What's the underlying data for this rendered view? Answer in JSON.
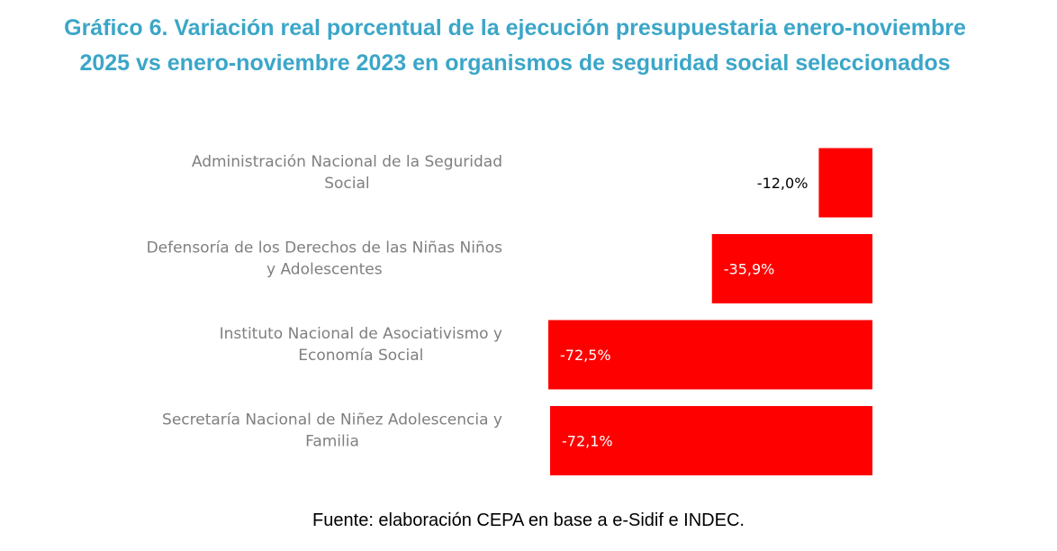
{
  "chart_data": {
    "type": "bar",
    "orientation": "horizontal",
    "title": "Gráfico 6. Variación real porcentual de la ejecución presupuestaria enero-noviembre 2025 vs enero-noviembre 2023 en organismos de seguridad social seleccionados",
    "categories": [
      [
        "Administración Nacional de la Seguridad",
        "Social"
      ],
      [
        "Defensoría de los Derechos de las Niñas Niños",
        "y Adolescentes"
      ],
      [
        "Instituto Nacional de Asociativismo y",
        "Economía Social"
      ],
      [
        "Secretaría Nacional de Niñez Adolescencia y",
        "Familia"
      ]
    ],
    "values": [
      -12.0,
      -35.9,
      -72.5,
      -72.1
    ],
    "data_labels": [
      "-12,0%",
      "-35,9%",
      "-72,5%",
      "-72,1%"
    ],
    "xlim": [
      -72.5,
      0
    ],
    "xlabel": "",
    "ylabel": "",
    "grid": false,
    "legend": "none",
    "bar_color": "#ff0000",
    "source": "Fuente: elaboración CEPA en base a e-Sidif e INDEC."
  },
  "colors": {
    "title": "#3ba6c8",
    "bar": "#ff0000",
    "category_text": "#7f7f7f",
    "label_inside": "#ffffff",
    "label_outside": "#000000"
  }
}
